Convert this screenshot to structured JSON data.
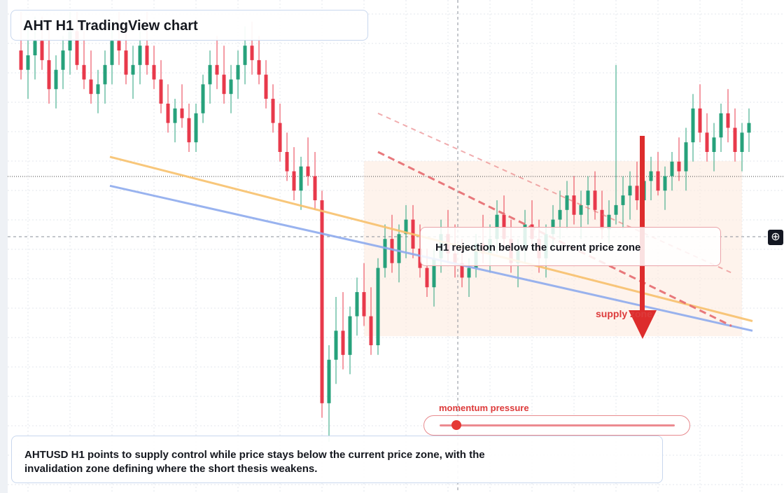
{
  "title": "AHT H1 TradingView chart",
  "rejection_label": "H1 rejection below the current price zone",
  "supply_label": "supply zone",
  "momentum": {
    "label": "momentum pressure",
    "level": 0.07
  },
  "description": "AHTUSD H1 points to supply control while price stays below the current price zone, with the invalidation zone defining where the short thesis weakens.",
  "icons": {
    "crosshair": "crosshair-plus-icon"
  },
  "colors": {
    "bull": "#26a17b",
    "bear": "#e8394b",
    "ma_fast": "#f8c16d",
    "ma_slow": "#8fabee",
    "trend_dashed": "#e66b6f",
    "arrow": "#dd2c2c",
    "zone": "#fde9dc"
  },
  "chart_data": {
    "type": "candlestick",
    "timeframe": "H1",
    "symbol": "AHTUSD",
    "title": "AHT H1 TradingView chart",
    "ylim": [
      0,
      100
    ],
    "annotations": [
      "H1 rejection below the current price zone",
      "supply zone",
      "momentum pressure"
    ],
    "candles": [
      [
        91,
        99,
        85,
        87
      ],
      [
        87,
        96,
        81,
        90
      ],
      [
        90,
        98,
        85,
        93
      ],
      [
        93,
        98,
        87,
        89
      ],
      [
        89,
        96,
        80,
        83
      ],
      [
        83,
        90,
        79,
        87
      ],
      [
        87,
        94,
        83,
        91
      ],
      [
        91,
        99,
        86,
        95
      ],
      [
        95,
        99,
        87,
        88
      ],
      [
        88,
        95,
        83,
        85
      ],
      [
        85,
        91,
        80,
        82
      ],
      [
        82,
        87,
        78,
        84
      ],
      [
        84,
        91,
        80,
        88
      ],
      [
        88,
        96,
        84,
        93
      ],
      [
        93,
        99,
        88,
        91
      ],
      [
        91,
        96,
        84,
        86
      ],
      [
        86,
        92,
        81,
        88
      ],
      [
        88,
        95,
        84,
        92
      ],
      [
        92,
        99,
        86,
        88
      ],
      [
        88,
        92,
        83,
        85
      ],
      [
        85,
        89,
        78,
        80
      ],
      [
        80,
        84,
        74,
        76
      ],
      [
        76,
        81,
        72,
        79
      ],
      [
        79,
        84,
        75,
        77
      ],
      [
        77,
        80,
        70,
        72
      ],
      [
        72,
        80,
        70,
        78
      ],
      [
        78,
        86,
        76,
        84
      ],
      [
        84,
        91,
        80,
        88
      ],
      [
        88,
        94,
        83,
        86
      ],
      [
        86,
        92,
        80,
        82
      ],
      [
        82,
        88,
        78,
        85
      ],
      [
        85,
        91,
        81,
        88
      ],
      [
        88,
        96,
        84,
        92
      ],
      [
        92,
        97,
        86,
        89
      ],
      [
        89,
        94,
        84,
        86
      ],
      [
        86,
        89,
        79,
        81
      ],
      [
        81,
        84,
        74,
        76
      ],
      [
        76,
        80,
        68,
        70
      ],
      [
        70,
        74,
        64,
        66
      ],
      [
        66,
        71,
        60,
        62
      ],
      [
        62,
        69,
        58,
        67
      ],
      [
        67,
        73,
        63,
        65
      ],
      [
        65,
        70,
        58,
        60
      ],
      [
        60,
        62,
        15,
        18
      ],
      [
        18,
        30,
        10,
        27
      ],
      [
        27,
        40,
        22,
        33
      ],
      [
        33,
        41,
        25,
        28
      ],
      [
        28,
        38,
        24,
        36
      ],
      [
        36,
        44,
        32,
        41
      ],
      [
        41,
        47,
        34,
        36
      ],
      [
        36,
        42,
        28,
        30
      ],
      [
        30,
        48,
        28,
        46
      ],
      [
        46,
        55,
        44,
        52
      ],
      [
        52,
        57,
        45,
        47
      ],
      [
        47,
        55,
        43,
        53
      ],
      [
        53,
        59,
        48,
        56
      ],
      [
        56,
        59,
        48,
        50
      ],
      [
        50,
        55,
        44,
        46
      ],
      [
        46,
        50,
        40,
        42
      ],
      [
        42,
        50,
        38,
        48
      ],
      [
        48,
        56,
        45,
        53
      ],
      [
        53,
        58,
        47,
        49
      ],
      [
        49,
        55,
        44,
        47
      ],
      [
        47,
        52,
        42,
        44
      ],
      [
        44,
        48,
        40,
        46
      ],
      [
        46,
        53,
        44,
        51
      ],
      [
        51,
        57,
        47,
        49
      ],
      [
        49,
        55,
        45,
        52
      ],
      [
        52,
        60,
        49,
        57
      ],
      [
        57,
        61,
        50,
        52
      ],
      [
        52,
        56,
        45,
        47
      ],
      [
        47,
        52,
        42,
        50
      ],
      [
        50,
        58,
        47,
        55
      ],
      [
        55,
        60,
        50,
        52
      ],
      [
        52,
        56,
        45,
        48
      ],
      [
        48,
        55,
        44,
        53
      ],
      [
        53,
        59,
        50,
        56
      ],
      [
        56,
        62,
        52,
        58
      ],
      [
        58,
        64,
        54,
        61
      ],
      [
        61,
        65,
        55,
        57
      ],
      [
        57,
        62,
        52,
        59
      ],
      [
        59,
        65,
        55,
        62
      ],
      [
        62,
        66,
        56,
        58
      ],
      [
        58,
        62,
        52,
        54
      ],
      [
        54,
        60,
        51,
        57
      ],
      [
        57,
        88,
        55,
        59
      ],
      [
        59,
        65,
        54,
        61
      ],
      [
        61,
        66,
        56,
        63
      ],
      [
        63,
        68,
        58,
        60
      ],
      [
        60,
        65,
        56,
        64
      ],
      [
        64,
        69,
        60,
        66
      ],
      [
        66,
        70,
        61,
        62
      ],
      [
        62,
        67,
        58,
        65
      ],
      [
        65,
        70,
        62,
        68
      ],
      [
        68,
        73,
        64,
        66
      ],
      [
        66,
        75,
        62,
        72
      ],
      [
        72,
        82,
        68,
        79
      ],
      [
        79,
        84,
        72,
        74
      ],
      [
        74,
        78,
        68,
        70
      ],
      [
        70,
        76,
        66,
        73
      ],
      [
        73,
        80,
        70,
        78
      ],
      [
        78,
        83,
        72,
        75
      ],
      [
        75,
        79,
        68,
        70
      ],
      [
        70,
        76,
        66,
        74
      ],
      [
        74,
        79,
        70,
        76
      ]
    ],
    "moving_averages": [
      {
        "kind": "fast",
        "start": [
          0,
          69
        ],
        "end": [
          104,
          35
        ]
      },
      {
        "kind": "slow",
        "start": [
          0,
          63
        ],
        "end": [
          104,
          33
        ]
      }
    ],
    "trendlines_dashed": [
      {
        "start": [
          43,
          78
        ],
        "end": [
          104,
          45
        ]
      },
      {
        "start": [
          43,
          70
        ],
        "end": [
          104,
          34
        ]
      }
    ]
  }
}
